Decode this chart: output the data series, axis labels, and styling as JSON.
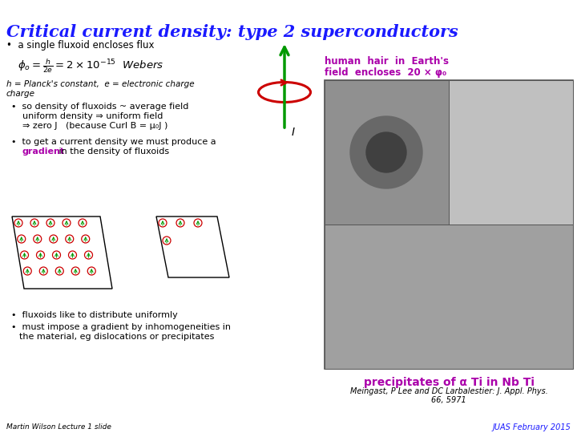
{
  "title": "Critical current density: type 2 superconductors",
  "title_color": "#1a1aff",
  "bg_color": "#ffffff",
  "text_color": "#000000",
  "gradient_color": "#aa00aa",
  "human_hair_color": "#aa00aa",
  "precip_color": "#aa00aa",
  "arrow_green": "#009900",
  "arrow_red": "#cc0000",
  "bullet1": "a single fluxoid encloses flux",
  "planck_note": "h = Planck's constant,  e = electronic charge",
  "bullet2a": "so density of fluxoids ~ average field",
  "bullet2b": "uniform density ⇒ uniform field",
  "bullet2c": "⇒ zero J   (because Curl B = μ₀J )",
  "bullet3a": "to get a current density we must produce a",
  "bullet3b": "gradient",
  "bullet3c": " in the density of fluxoids",
  "bullet4": "fluxoids like to distribute uniformly",
  "bullet5a": "must impose a gradient by inhomogeneities in",
  "bullet5b": "the material, eg dislocations or precipitates",
  "human_hair_text1": "human  hair  in  Earth's",
  "human_hair_text2": "field  encloses  20 × φ₀",
  "precip_text1": "precipitates of α Ti in Nb Ti",
  "ref_line1": "Meingast, P Lee and DC Larbalestier: J. Appl. Phys.",
  "ref_line2": "66, 5971",
  "bottom_left": "Martin Wilson Lecture 1 slide",
  "bottom_right": "JUAS February 2015"
}
